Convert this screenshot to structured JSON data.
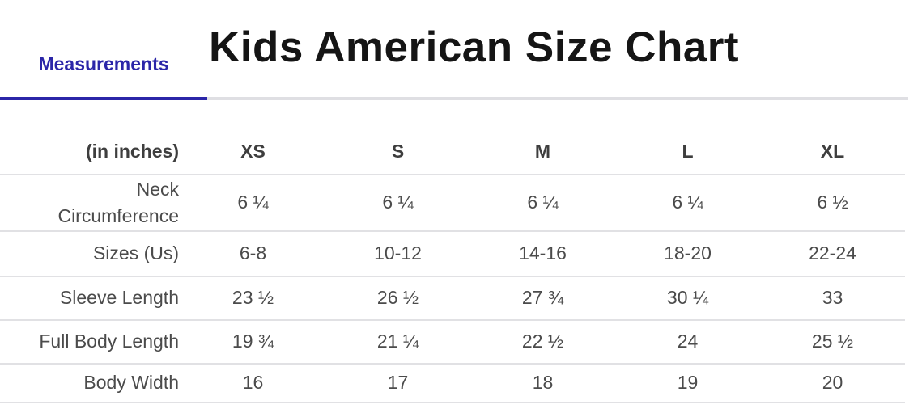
{
  "tab": {
    "label": "Measurements"
  },
  "header": {
    "title": "Kids American Size Chart"
  },
  "table": {
    "unit_label": "(in inches)",
    "columns": [
      "XS",
      "S",
      "M",
      "L",
      "XL"
    ],
    "rows": [
      {
        "label": "Neck Circumference",
        "values": [
          "6 ¼",
          "6 ¼",
          "6 ¼",
          "6 ¼",
          "6 ½"
        ]
      },
      {
        "label": "Sizes (Us)",
        "values": [
          "6-8",
          "10-12",
          "14-16",
          "18-20",
          "22-24"
        ]
      },
      {
        "label": "Sleeve Length",
        "values": [
          "23 ½",
          "26 ½",
          "27 ¾",
          "30 ¼",
          "33"
        ]
      },
      {
        "label": "Full Body Length",
        "values": [
          "19 ¾",
          "21 ¼",
          "22 ½",
          "24",
          "25 ½"
        ]
      },
      {
        "label": "Body Width",
        "values": [
          "16",
          "17",
          "18",
          "19",
          "20"
        ]
      }
    ]
  },
  "colors": {
    "accent": "#2b26a8",
    "divider": "#e1e1e4",
    "rule_rest": "#dfdfe3",
    "title": "#151515",
    "header_text": "#3e3e3e",
    "body_text": "#4b4b4b"
  }
}
